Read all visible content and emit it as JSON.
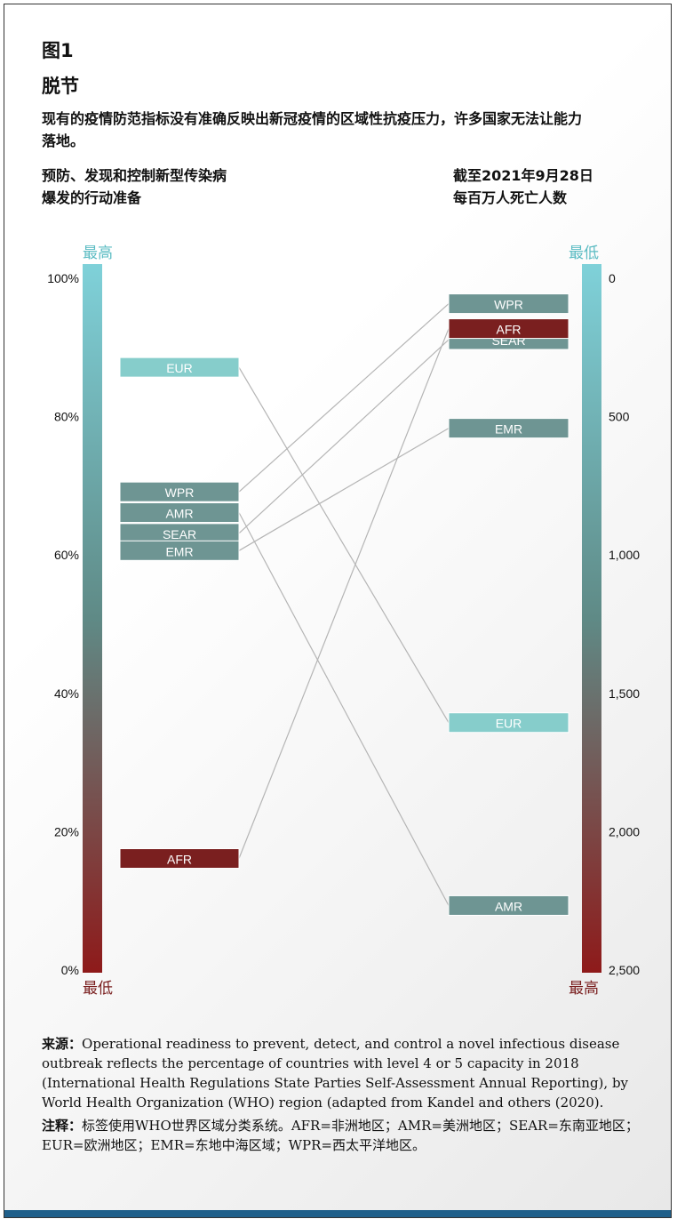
{
  "figure_label": "图1",
  "title": "脱节",
  "subtitle": "现有的疫情防范指标没有准确反映出新冠疫情的区域性抗疫压力，许多国家无法让能力落地。",
  "left_heading": "预防、发现和控制新型传染病爆发的行动准备",
  "right_heading_line1": "截至2021年9月28日",
  "right_heading_line2": "每百万人死亡人数",
  "left_top_label": "最高",
  "left_bottom_label": "最低",
  "right_top_label": "最低",
  "right_bottom_label": "最高",
  "source_label": "来源：",
  "source_text": "Operational readiness to prevent, detect, and control a novel infectious disease outbreak reflects the percentage of countries with level 4 or 5 capacity in 2018 (International Health Regulations State Parties Self-Assessment Annual Reporting), by World Health Organization (WHO) region (adapted from Kandel and others (2020).",
  "note_label": "注释：",
  "note_text": "标签使用WHO世界区域分类系统。AFR=非洲地区；AMR=美洲地区；SEAR=东南亚地区；EUR=欧洲地区；EMR=东地中海区域；WPR=西太平洋地区。",
  "colors": {
    "scale_top": "#7fd1d9",
    "scale_mid": "#5f8a86",
    "scale_bottom": "#8e1a1a",
    "eur": "#86cdcb",
    "wpr": "#6e9593",
    "amr": "#6e9593",
    "sear": "#6e9593",
    "emr": "#6e9593",
    "afr": "#7a1f1f",
    "connector": "#b5b5b5"
  },
  "chart_data": {
    "type": "slope",
    "left_axis": {
      "ticks": [
        "100%",
        "80%",
        "60%",
        "40%",
        "20%",
        "0%"
      ],
      "tick_values": [
        100,
        80,
        60,
        40,
        20,
        0
      ],
      "ylim": [
        0,
        100
      ]
    },
    "right_axis": {
      "ticks": [
        "0",
        "500",
        "1,000",
        "1,500",
        "2,000",
        "2,500"
      ],
      "tick_values": [
        0,
        500,
        1000,
        1500,
        2000,
        2500
      ],
      "ylim": [
        0,
        2500
      ],
      "inverted": true
    },
    "regions": [
      {
        "label": "EUR",
        "left": 87,
        "right": 1609,
        "color_key": "eur"
      },
      {
        "label": "WPR",
        "left": 69,
        "right": 95,
        "color_key": "wpr"
      },
      {
        "label": "AMR",
        "left": 66,
        "right": 2270,
        "color_key": "amr"
      },
      {
        "label": "SEAR",
        "left": 63,
        "right": 225,
        "color_key": "sear"
      },
      {
        "label": "EMR",
        "left": 60.5,
        "right": 545,
        "color_key": "emr"
      },
      {
        "label": "AFR",
        "left": 16,
        "right": 185,
        "color_key": "afr"
      }
    ]
  }
}
